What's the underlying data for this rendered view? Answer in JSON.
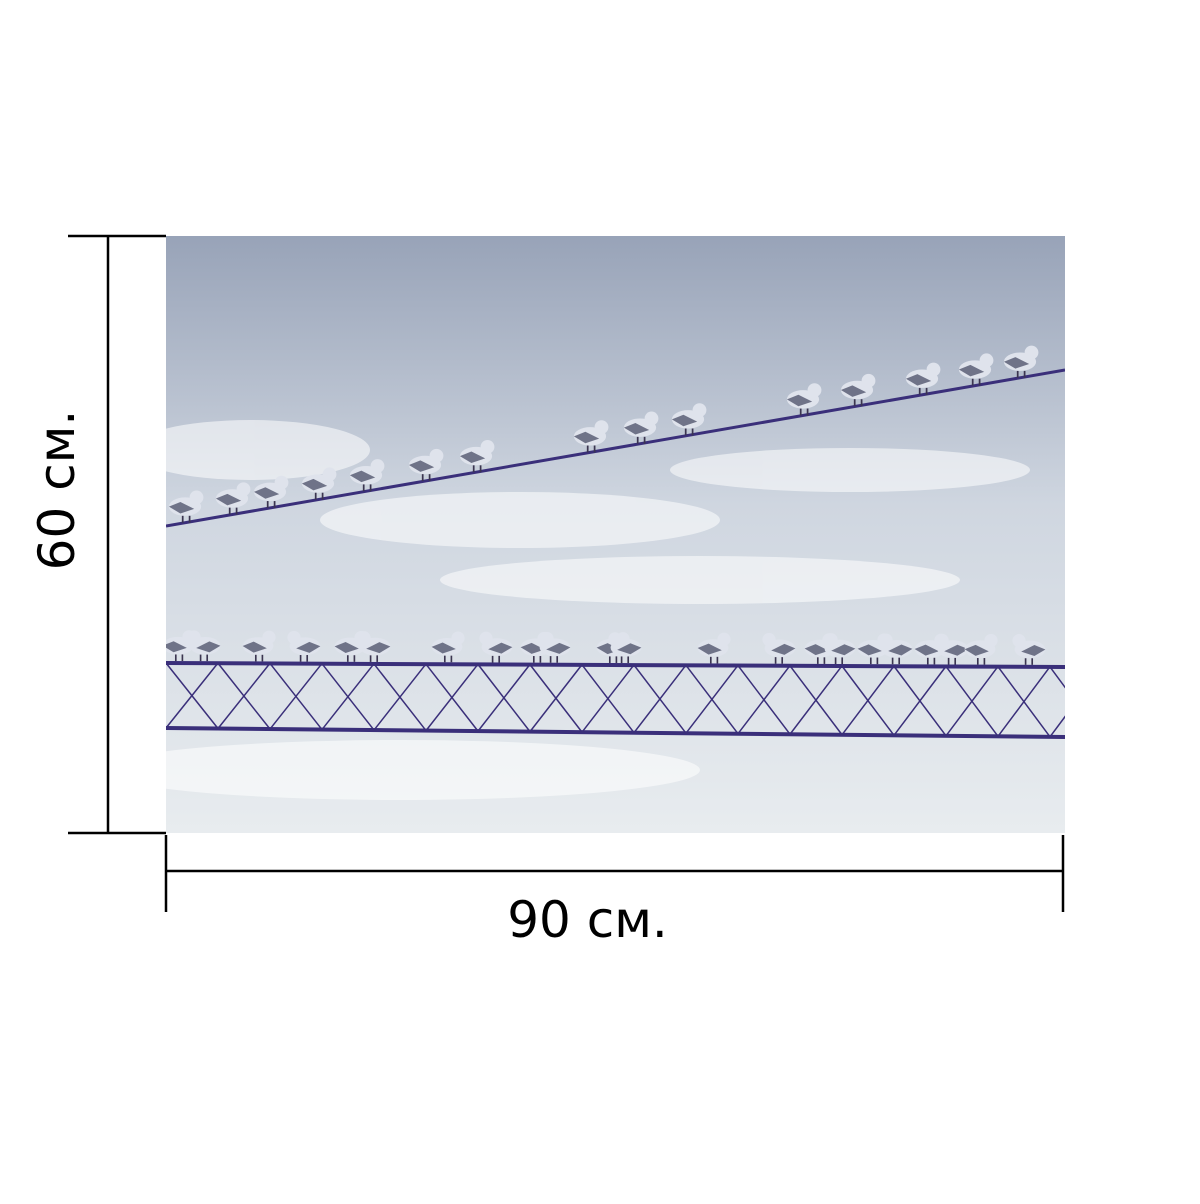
{
  "product_preview": {
    "width_label": "90 см.",
    "height_label": "60 см.",
    "photo": {
      "subject": "seagulls-on-wires",
      "sky_top_color": "#98a3b8",
      "sky_bottom_color": "#e8ecef",
      "wire_color": "#3a2f7a",
      "bird_body_color": "#dfe3ec",
      "bird_shadow_color": "#6f7388"
    }
  }
}
